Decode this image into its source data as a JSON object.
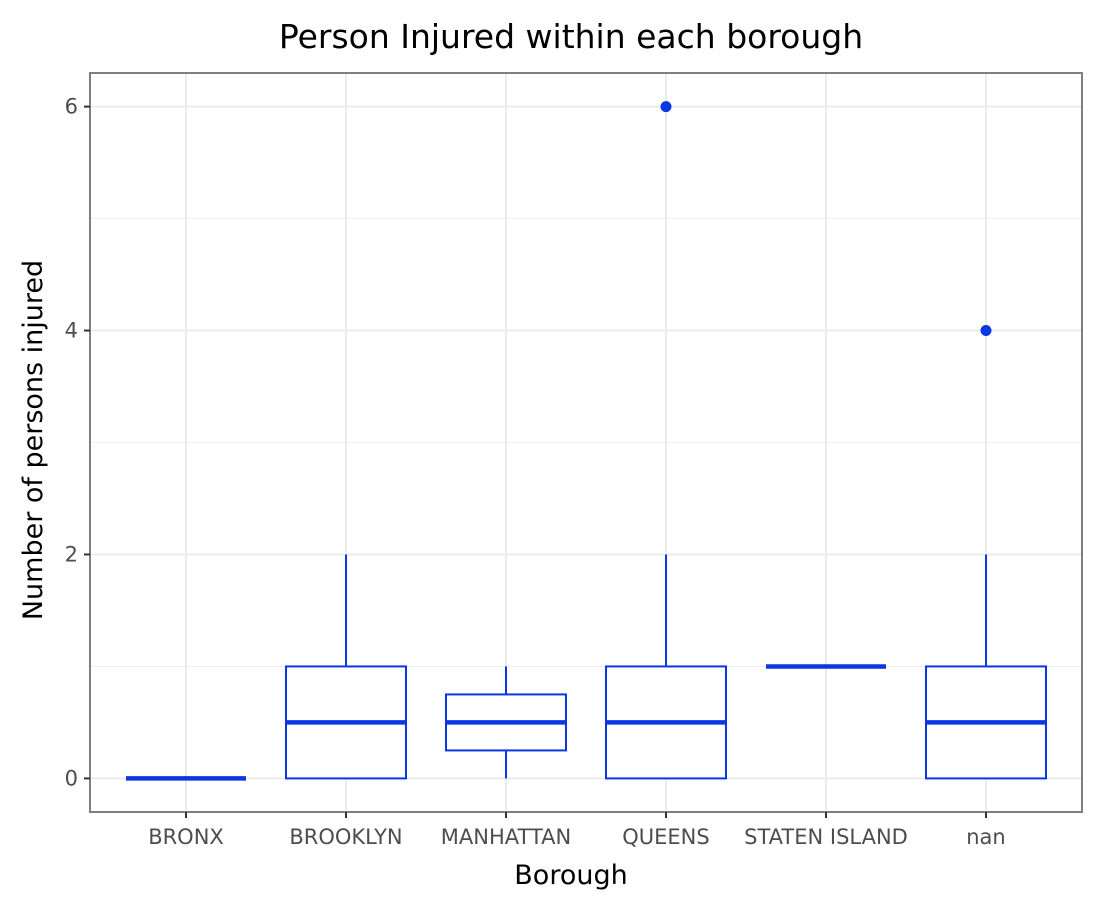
{
  "chart_data": {
    "type": "boxplot",
    "title": "Person Injured within each borough",
    "xlabel": "Borough",
    "ylabel": "Number of persons injured",
    "categories": [
      "BRONX",
      "BROOKLYN",
      "MANHATTAN",
      "QUEENS",
      "STATEN ISLAND",
      "nan"
    ],
    "boxes": [
      {
        "category": "BRONX",
        "whisker_low": 0,
        "q1": 0,
        "median": 0,
        "q3": 0,
        "whisker_high": 0,
        "outliers": []
      },
      {
        "category": "BROOKLYN",
        "whisker_low": 0,
        "q1": 0,
        "median": 0.5,
        "q3": 1,
        "whisker_high": 2,
        "outliers": []
      },
      {
        "category": "MANHATTAN",
        "whisker_low": 0,
        "q1": 0.25,
        "median": 0.5,
        "q3": 0.75,
        "whisker_high": 1,
        "outliers": []
      },
      {
        "category": "QUEENS",
        "whisker_low": 0,
        "q1": 0,
        "median": 0.5,
        "q3": 1,
        "whisker_high": 2,
        "outliers": [
          6
        ]
      },
      {
        "category": "STATEN ISLAND",
        "whisker_low": 1,
        "q1": 1,
        "median": 1,
        "q3": 1,
        "whisker_high": 1,
        "outliers": []
      },
      {
        "category": "nan",
        "whisker_low": 0,
        "q1": 0,
        "median": 0.5,
        "q3": 1,
        "whisker_high": 2,
        "outliers": [
          4
        ]
      }
    ],
    "yticks": [
      0,
      2,
      4,
      6
    ],
    "ylim": [
      -0.3,
      6.3
    ],
    "grid": true,
    "colors": {
      "box": "#0b36e3",
      "grid": "#ebebeb",
      "panel_border": "#7f7f7f",
      "background": "#ffffff"
    }
  }
}
